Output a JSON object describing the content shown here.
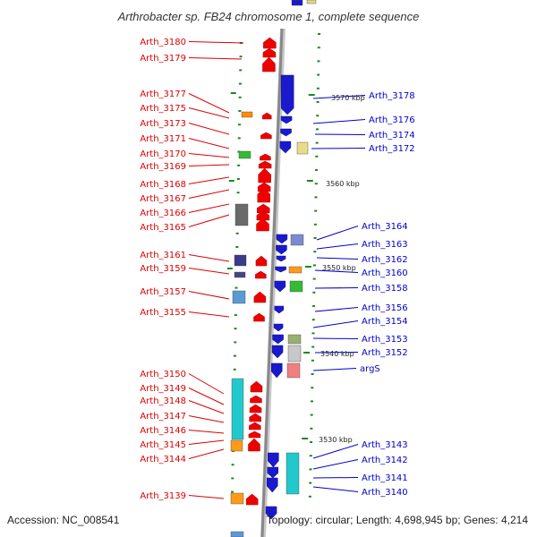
{
  "title": "Arthrobacter sp. FB24 chromosome 1, complete sequence",
  "footer": {
    "accession": "Accession: NC_008541",
    "summary": "Topology: circular; Length: 4,698,945 bp; Genes: 4,214"
  },
  "colors": {
    "left_strand": "#ee0000",
    "right_strand": "#1a1acc",
    "left_label": "#dd0000",
    "right_label": "#0000cc",
    "backbone": "#888888",
    "tick": "#1a8a1a"
  },
  "scale_labels": [
    "3570 kbp",
    "3560 kbp",
    "3550 kbp",
    "3540 kbp",
    "3530 kbp"
  ],
  "left_labels": [
    "Arth_3180",
    "Arth_3179",
    "Arth_3177",
    "Arth_3175",
    "Arth_3173",
    "Arth_3171",
    "Arth_3170",
    "Arth_3169",
    "Arth_3168",
    "Arth_3167",
    "Arth_3166",
    "Arth_3165",
    "Arth_3161",
    "Arth_3159",
    "Arth_3157",
    "Arth_3155",
    "Arth_3150",
    "Arth_3149",
    "Arth_3148",
    "Arth_3147",
    "Arth_3146",
    "Arth_3145",
    "Arth_3144",
    "Arth_3139"
  ],
  "right_labels": [
    "Arth_3178",
    "Arth_3176",
    "Arth_3174",
    "Arth_3172",
    "Arth_3164",
    "Arth_3163",
    "Arth_3162",
    "Arth_3160",
    "Arth_3158",
    "Arth_3156",
    "Arth_3154",
    "Arth_3153",
    "Arth_3152",
    "argS",
    "Arth_3143",
    "Arth_3142",
    "Arth_3141",
    "Arth_3140"
  ]
}
